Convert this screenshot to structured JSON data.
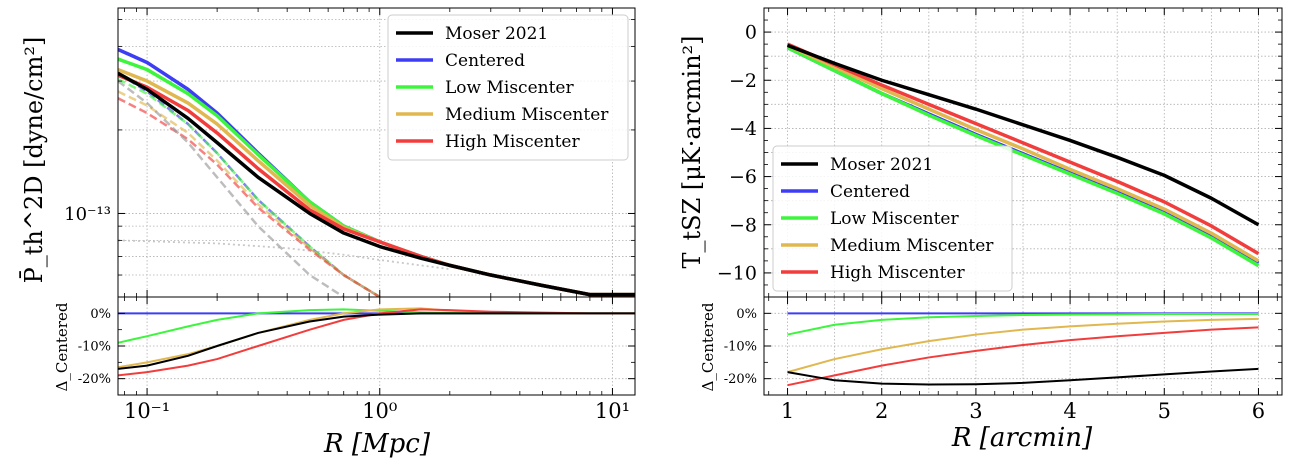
{
  "series_styles": [
    {
      "name": "Moser 2021",
      "color": "#000000"
    },
    {
      "name": "Centered",
      "color": "#3d3df5"
    },
    {
      "name": "Low Miscenter",
      "color": "#3df53d"
    },
    {
      "name": "Medium Miscenter",
      "color": "#e0b84f"
    },
    {
      "name": "High Miscenter",
      "color": "#f23d3d"
    }
  ],
  "chart_data": [
    {
      "type": "line",
      "panel": "left-top",
      "xscale": "log",
      "yscale": "log",
      "xlim": [
        0.075,
        12.5
      ],
      "ylim": [
        5e-14,
        5.5e-13
      ],
      "xlabel": "R [Mpc]",
      "ylabel": "P̄_th^2D [dyne/cm²]",
      "yticks": [
        {
          "value": 1e-13,
          "label": "10⁻¹³"
        }
      ],
      "legend": [
        "Moser 2021",
        "Centered",
        "Low Miscenter",
        "Medium Miscenter",
        "High Miscenter"
      ],
      "legend_position": "top-right",
      "grid": true,
      "x": [
        0.075,
        0.1,
        0.15,
        0.2,
        0.3,
        0.5,
        0.7,
        1.0,
        1.5,
        2.0,
        3.0,
        5.0,
        8.0,
        12.5
      ],
      "series": [
        {
          "name": "Moser 2021",
          "values": [
            3.2e-13,
            2.8e-13,
            2.2e-13,
            1.8e-13,
            1.35e-13,
            1e-13,
            8.5e-14,
            7.6e-14,
            6.9e-14,
            6.5e-14,
            6e-14,
            5.5e-14,
            5.1e-14,
            5.1e-14
          ]
        },
        {
          "name": "Centered",
          "values": [
            3.9e-13,
            3.5e-13,
            2.8e-13,
            2.3e-13,
            1.65e-13,
            1.1e-13,
            9e-14,
            7.9e-14,
            7e-14,
            6.5e-14,
            6e-14,
            5.5e-14,
            5.1e-14,
            5.1e-14
          ]
        },
        {
          "name": "Low Miscenter",
          "values": [
            3.6e-13,
            3.3e-13,
            2.7e-13,
            2.25e-13,
            1.63e-13,
            1.1e-13,
            9e-14,
            7.9e-14,
            7e-14,
            6.5e-14,
            6e-14,
            5.5e-14,
            5.1e-14,
            5.1e-14
          ]
        },
        {
          "name": "Medium Miscenter",
          "values": [
            3.3e-13,
            3e-13,
            2.5e-13,
            2.1e-13,
            1.55e-13,
            1.07e-13,
            8.9e-14,
            7.9e-14,
            7e-14,
            6.5e-14,
            6e-14,
            5.5e-14,
            5.1e-14,
            5.1e-14
          ]
        },
        {
          "name": "High Miscenter",
          "values": [
            3.15e-13,
            2.85e-13,
            2.35e-13,
            1.95e-13,
            1.45e-13,
            1.03e-13,
            8.8e-14,
            7.9e-14,
            7e-14,
            6.5e-14,
            6e-14,
            5.5e-14,
            5.1e-14,
            5.1e-14
          ]
        }
      ],
      "dashed_series": [
        {
          "name": "Centered",
          "values": [
            3.2e-13,
            2.75e-13,
            2.1e-13,
            1.65e-13,
            1.12e-13,
            7.6e-14,
            6e-14,
            5e-14
          ]
        },
        {
          "name": "Low Miscenter",
          "values": [
            3.05e-13,
            2.7e-13,
            2.1e-13,
            1.65e-13,
            1.12e-13,
            7.6e-14,
            6e-14,
            5e-14
          ]
        },
        {
          "name": "Medium Miscenter",
          "values": [
            2.75e-13,
            2.45e-13,
            1.95e-13,
            1.55e-13,
            1.08e-13,
            7.5e-14,
            6e-14,
            5e-14
          ]
        },
        {
          "name": "High Miscenter",
          "values": [
            2.6e-13,
            2.3e-13,
            1.85e-13,
            1.5e-13,
            1.05e-13,
            7.4e-14,
            6e-14,
            5e-14
          ]
        },
        {
          "name": "Moser 2021",
          "values": [
            3e-13,
            2.5e-13,
            1.8e-13,
            1.35e-13,
            9e-14,
            6e-14,
            5e-14
          ]
        }
      ],
      "dotted_series": {
        "x": [
          0.075,
          0.2,
          0.4,
          0.7,
          1.0,
          1.5,
          2.0
        ],
        "values": [
          8e-14,
          7.8e-14,
          7.5e-14,
          7.1e-14,
          6.8e-14,
          6.5e-14,
          6.3e-14
        ]
      }
    },
    {
      "type": "line",
      "panel": "left-bottom",
      "xscale": "log",
      "xlim": [
        0.075,
        12.5
      ],
      "ylim": [
        -0.25,
        0.05
      ],
      "xlabel": "R [Mpc]",
      "ylabel": "Δ_Centered",
      "xticks": [
        {
          "value": 0.1,
          "label": "10⁻¹"
        },
        {
          "value": 1,
          "label": "10⁰"
        },
        {
          "value": 10,
          "label": "10¹"
        }
      ],
      "yticks": [
        {
          "value": 0,
          "label": "0%"
        },
        {
          "value": -0.1,
          "label": "-10%"
        },
        {
          "value": -0.2,
          "label": "-20%"
        }
      ],
      "x": [
        0.075,
        0.1,
        0.15,
        0.2,
        0.3,
        0.5,
        0.7,
        1.0,
        1.5,
        2.0,
        3.0,
        5.0,
        8.0,
        12.5
      ],
      "series": [
        {
          "name": "Moser 2021",
          "values": [
            -0.17,
            -0.16,
            -0.13,
            -0.1,
            -0.06,
            -0.025,
            -0.01,
            -0.004,
            0.0,
            0.0,
            0.0,
            0.0,
            0.0,
            0.0
          ]
        },
        {
          "name": "Centered",
          "values": [
            0,
            0,
            0,
            0,
            0,
            0,
            0,
            0,
            0,
            0,
            0,
            0,
            0,
            0
          ]
        },
        {
          "name": "Low Miscenter",
          "values": [
            -0.09,
            -0.07,
            -0.04,
            -0.02,
            0.0,
            0.01,
            0.012,
            0.008,
            0.003,
            0.001,
            0.0,
            0.0,
            0.0,
            0.0
          ]
        },
        {
          "name": "Medium Miscenter",
          "values": [
            -0.165,
            -0.15,
            -0.125,
            -0.1,
            -0.06,
            -0.02,
            0.0,
            0.012,
            0.015,
            0.008,
            0.003,
            0.001,
            0.0,
            0.0
          ]
        },
        {
          "name": "High Miscenter",
          "values": [
            -0.19,
            -0.18,
            -0.16,
            -0.14,
            -0.1,
            -0.05,
            -0.02,
            0.0,
            0.012,
            0.01,
            0.005,
            0.002,
            0.0,
            0.0
          ]
        }
      ]
    },
    {
      "type": "line",
      "panel": "right-top",
      "xlim": [
        0.75,
        6.25
      ],
      "ylim": [
        -11,
        1
      ],
      "xlabel": "R [arcmin]",
      "ylabel": "T_tSZ [μK·arcmin²]",
      "yticks": [
        {
          "value": 0,
          "label": "0"
        },
        {
          "value": -2,
          "label": "−2"
        },
        {
          "value": -4,
          "label": "−4"
        },
        {
          "value": -6,
          "label": "−6"
        },
        {
          "value": -8,
          "label": "−8"
        },
        {
          "value": -10,
          "label": "−10"
        }
      ],
      "legend": [
        "Moser 2021",
        "Centered",
        "Low Miscenter",
        "Medium Miscenter",
        "High Miscenter"
      ],
      "legend_position": "lower-left",
      "grid": true,
      "x": [
        1,
        1.5,
        2,
        2.5,
        3,
        3.5,
        4,
        4.5,
        5,
        5.5,
        6
      ],
      "series": [
        {
          "name": "Moser 2021",
          "values": [
            -0.55,
            -1.3,
            -2.0,
            -2.6,
            -3.2,
            -3.85,
            -4.5,
            -5.2,
            -5.95,
            -6.9,
            -8.0
          ]
        },
        {
          "name": "Centered",
          "values": [
            -0.65,
            -1.6,
            -2.55,
            -3.4,
            -4.25,
            -5.05,
            -5.85,
            -6.65,
            -7.5,
            -8.5,
            -9.6
          ]
        },
        {
          "name": "Low Miscenter",
          "values": [
            -0.65,
            -1.6,
            -2.55,
            -3.45,
            -4.3,
            -5.1,
            -5.9,
            -6.7,
            -7.55,
            -8.55,
            -9.7
          ]
        },
        {
          "name": "Medium Miscenter",
          "values": [
            -0.55,
            -1.45,
            -2.35,
            -3.2,
            -4.05,
            -4.85,
            -5.7,
            -6.5,
            -7.35,
            -8.35,
            -9.5
          ]
        },
        {
          "name": "High Miscenter",
          "values": [
            -0.5,
            -1.35,
            -2.2,
            -3.0,
            -3.8,
            -4.6,
            -5.4,
            -6.2,
            -7.05,
            -8.05,
            -9.2
          ]
        }
      ]
    },
    {
      "type": "line",
      "panel": "right-bottom",
      "xlim": [
        0.75,
        6.25
      ],
      "ylim": [
        -0.25,
        0.05
      ],
      "xlabel": "R [arcmin]",
      "ylabel": "Δ_Centered",
      "xticks": [
        {
          "value": 1,
          "label": "1"
        },
        {
          "value": 2,
          "label": "2"
        },
        {
          "value": 3,
          "label": "3"
        },
        {
          "value": 4,
          "label": "4"
        },
        {
          "value": 5,
          "label": "5"
        },
        {
          "value": 6,
          "label": "6"
        }
      ],
      "yticks": [
        {
          "value": 0,
          "label": "0%"
        },
        {
          "value": -0.1,
          "label": "-10%"
        },
        {
          "value": -0.2,
          "label": "-20%"
        }
      ],
      "x": [
        1,
        1.5,
        2,
        2.5,
        3,
        3.5,
        4,
        4.5,
        5,
        5.5,
        6
      ],
      "series": [
        {
          "name": "Moser 2021",
          "values": [
            -0.18,
            -0.205,
            -0.215,
            -0.218,
            -0.217,
            -0.213,
            -0.205,
            -0.196,
            -0.187,
            -0.178,
            -0.17
          ]
        },
        {
          "name": "Centered",
          "values": [
            0,
            0,
            0,
            0,
            0,
            0,
            0,
            0,
            0,
            0,
            0
          ]
        },
        {
          "name": "Low Miscenter",
          "values": [
            -0.065,
            -0.035,
            -0.02,
            -0.012,
            -0.008,
            -0.005,
            -0.004,
            -0.003,
            -0.002,
            -0.002,
            -0.002
          ]
        },
        {
          "name": "Medium Miscenter",
          "values": [
            -0.18,
            -0.14,
            -0.11,
            -0.085,
            -0.065,
            -0.05,
            -0.04,
            -0.032,
            -0.025,
            -0.02,
            -0.017
          ]
        },
        {
          "name": "High Miscenter",
          "values": [
            -0.22,
            -0.19,
            -0.16,
            -0.135,
            -0.115,
            -0.097,
            -0.082,
            -0.07,
            -0.06,
            -0.05,
            -0.043
          ]
        }
      ]
    }
  ]
}
